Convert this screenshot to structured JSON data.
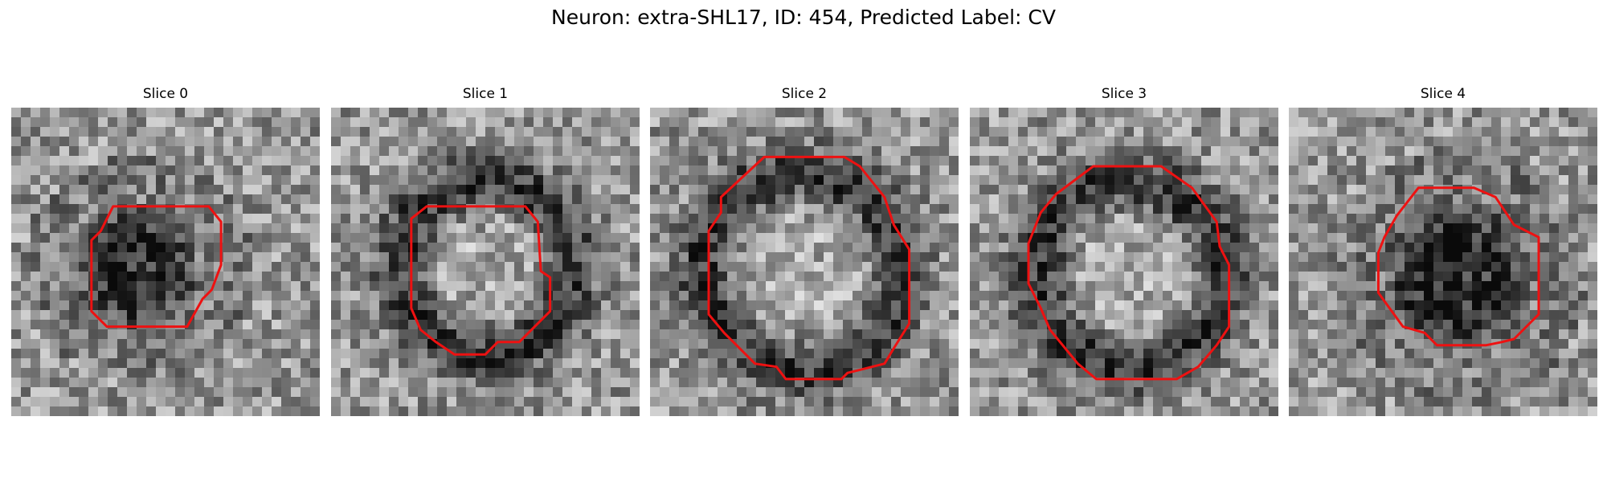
{
  "figure": {
    "title": "Neuron: extra-SHL17, ID: 454, Predicted Label: CV",
    "contour_color": "#ee1111"
  },
  "panels": [
    {
      "title": "Slice 0",
      "center": [
        0.41,
        0.52
      ],
      "radius": 0.21,
      "ring_width": 0.16,
      "fill": "dark",
      "contour": [
        [
          0.33,
          0.32
        ],
        [
          0.64,
          0.32
        ],
        [
          0.68,
          0.37
        ],
        [
          0.68,
          0.51
        ],
        [
          0.65,
          0.59
        ],
        [
          0.62,
          0.62
        ],
        [
          0.57,
          0.71
        ],
        [
          0.31,
          0.71
        ],
        [
          0.26,
          0.66
        ],
        [
          0.26,
          0.43
        ],
        [
          0.29,
          0.4
        ]
      ]
    },
    {
      "title": "Slice 1",
      "center": [
        0.5,
        0.52
      ],
      "radius": 0.28,
      "ring_width": 0.09,
      "fill": "light",
      "contour": [
        [
          0.31,
          0.32
        ],
        [
          0.63,
          0.32
        ],
        [
          0.67,
          0.37
        ],
        [
          0.68,
          0.53
        ],
        [
          0.71,
          0.55
        ],
        [
          0.71,
          0.66
        ],
        [
          0.61,
          0.76
        ],
        [
          0.54,
          0.76
        ],
        [
          0.5,
          0.8
        ],
        [
          0.4,
          0.8
        ],
        [
          0.34,
          0.76
        ],
        [
          0.29,
          0.72
        ],
        [
          0.26,
          0.65
        ],
        [
          0.26,
          0.36
        ]
      ]
    },
    {
      "title": "Slice 2",
      "center": [
        0.49,
        0.53
      ],
      "radius": 0.32,
      "ring_width": 0.09,
      "fill": "light",
      "contour": [
        [
          0.37,
          0.16
        ],
        [
          0.63,
          0.16
        ],
        [
          0.68,
          0.19
        ],
        [
          0.76,
          0.29
        ],
        [
          0.79,
          0.38
        ],
        [
          0.84,
          0.46
        ],
        [
          0.84,
          0.7
        ],
        [
          0.79,
          0.78
        ],
        [
          0.76,
          0.83
        ],
        [
          0.68,
          0.85
        ],
        [
          0.64,
          0.86
        ],
        [
          0.62,
          0.88
        ],
        [
          0.44,
          0.88
        ],
        [
          0.41,
          0.84
        ],
        [
          0.34,
          0.83
        ],
        [
          0.24,
          0.73
        ],
        [
          0.19,
          0.67
        ],
        [
          0.19,
          0.4
        ],
        [
          0.23,
          0.34
        ],
        [
          0.23,
          0.29
        ]
      ]
    },
    {
      "title": "Slice 3",
      "center": [
        0.52,
        0.54
      ],
      "radius": 0.3,
      "ring_width": 0.09,
      "fill": "light",
      "contour": [
        [
          0.4,
          0.19
        ],
        [
          0.62,
          0.19
        ],
        [
          0.72,
          0.26
        ],
        [
          0.8,
          0.37
        ],
        [
          0.81,
          0.45
        ],
        [
          0.84,
          0.51
        ],
        [
          0.84,
          0.71
        ],
        [
          0.8,
          0.77
        ],
        [
          0.74,
          0.84
        ],
        [
          0.67,
          0.88
        ],
        [
          0.41,
          0.88
        ],
        [
          0.35,
          0.83
        ],
        [
          0.26,
          0.72
        ],
        [
          0.23,
          0.65
        ],
        [
          0.19,
          0.57
        ],
        [
          0.19,
          0.44
        ],
        [
          0.23,
          0.34
        ],
        [
          0.28,
          0.28
        ]
      ]
    },
    {
      "title": "Slice 4",
      "center": [
        0.55,
        0.55
      ],
      "radius": 0.26,
      "ring_width": 0.16,
      "fill": "dark",
      "contour": [
        [
          0.42,
          0.26
        ],
        [
          0.6,
          0.26
        ],
        [
          0.67,
          0.29
        ],
        [
          0.73,
          0.38
        ],
        [
          0.81,
          0.42
        ],
        [
          0.81,
          0.67
        ],
        [
          0.73,
          0.75
        ],
        [
          0.69,
          0.76
        ],
        [
          0.64,
          0.77
        ],
        [
          0.48,
          0.77
        ],
        [
          0.44,
          0.73
        ],
        [
          0.37,
          0.71
        ],
        [
          0.29,
          0.6
        ],
        [
          0.29,
          0.47
        ],
        [
          0.31,
          0.42
        ],
        [
          0.35,
          0.35
        ]
      ]
    }
  ]
}
